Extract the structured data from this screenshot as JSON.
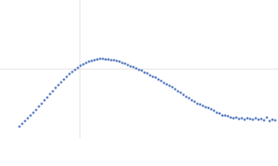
{
  "chart_data": {
    "type": "scatter",
    "x": [
      28,
      32,
      36,
      40,
      44,
      48,
      52,
      56,
      60,
      64,
      68,
      72,
      76,
      80,
      84,
      88,
      92,
      96,
      100,
      104,
      108,
      112,
      116,
      120,
      124,
      128,
      132,
      136,
      140,
      144,
      148,
      152,
      156,
      160,
      164,
      168,
      172,
      176,
      180,
      184,
      188,
      192,
      196,
      200,
      204,
      208,
      212,
      216,
      220,
      224,
      228,
      232,
      236,
      240,
      244,
      248,
      252,
      256,
      260,
      264,
      268,
      272,
      276,
      280,
      284,
      288,
      292,
      296,
      300,
      304,
      308,
      312,
      316,
      320,
      324,
      328,
      332,
      336,
      340,
      344,
      348,
      352,
      356,
      360,
      364,
      368,
      372,
      376,
      380,
      384,
      388,
      392,
      396
    ],
    "series": [
      {
        "color": "#3a66b8",
        "values": [
          17,
          21,
          25,
          29,
          33,
          37,
          41,
          46,
          50,
          55,
          59,
          64,
          68,
          73,
          77,
          81,
          85,
          89,
          93,
          96,
          99,
          102,
          105,
          107,
          109,
          111,
          112,
          113,
          114,
          115,
          115,
          114,
          114,
          113,
          113,
          112,
          111,
          109,
          108,
          106,
          104,
          103,
          101,
          99,
          98,
          95,
          94,
          91,
          89,
          88,
          85,
          83,
          80,
          78,
          76,
          74,
          71,
          68,
          66,
          63,
          60,
          58,
          55,
          53,
          50,
          49,
          47,
          45,
          44,
          42,
          40,
          37,
          36,
          33,
          33,
          32,
          30,
          29,
          30,
          28,
          29,
          27,
          29,
          28,
          27,
          29,
          27,
          28,
          26,
          30,
          25,
          27,
          26
        ]
      }
    ],
    "xlim": [
      0,
      400
    ],
    "ylim": [
      0,
      200
    ],
    "xticks": [
      115
    ],
    "yticks": [
      100
    ],
    "grid": true
  }
}
